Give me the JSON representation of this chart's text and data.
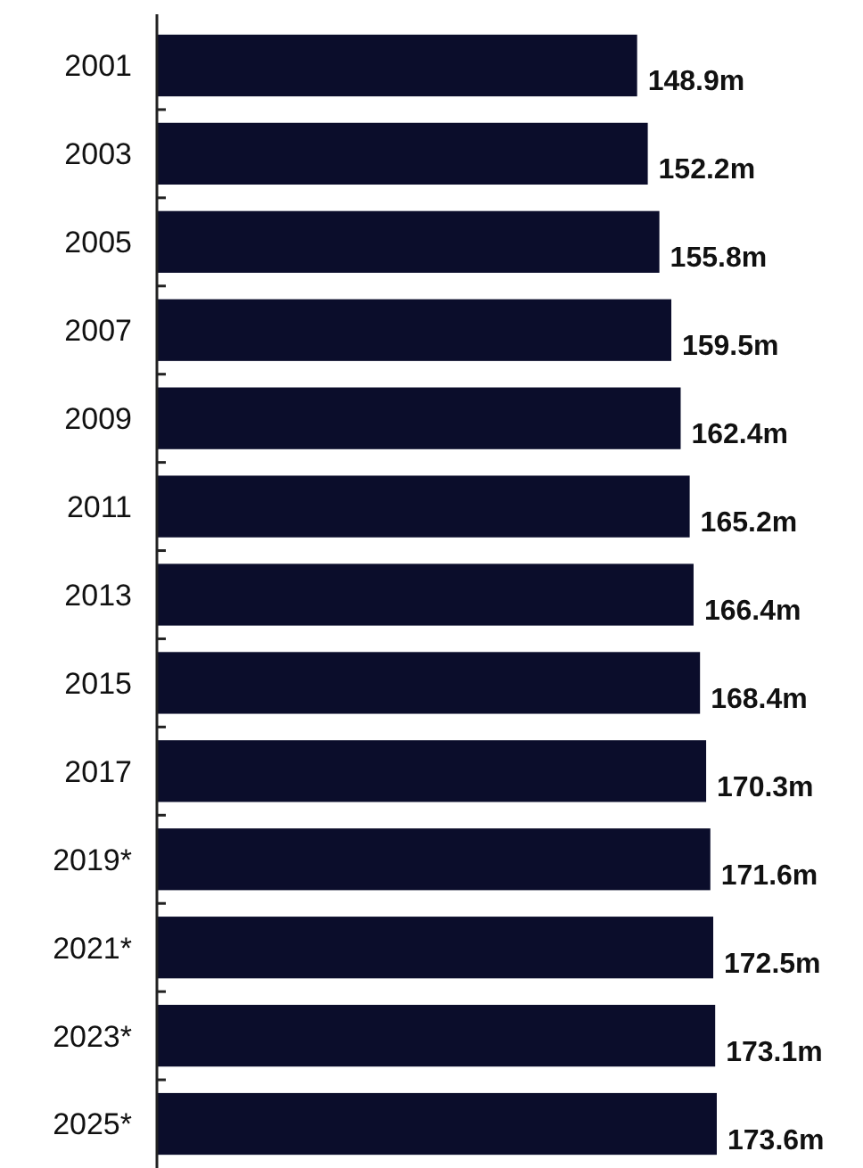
{
  "chart_data": {
    "type": "bar",
    "orientation": "horizontal",
    "categories": [
      "2001",
      "2003",
      "2005",
      "2007",
      "2009",
      "2011",
      "2013",
      "2015",
      "2017",
      "2019*",
      "2021*",
      "2023*",
      "2025*"
    ],
    "values": [
      148.9,
      152.2,
      155.8,
      159.5,
      162.4,
      165.2,
      166.4,
      168.4,
      170.3,
      171.6,
      172.5,
      173.1,
      173.6
    ],
    "value_labels": [
      "148.9m",
      "152.2m",
      "155.8m",
      "159.5m",
      "162.4m",
      "165.2m",
      "166.4m",
      "168.4m",
      "170.3m",
      "171.6m",
      "172.5m",
      "173.1m",
      "173.6m"
    ],
    "color": "#0b0d2b"
  }
}
